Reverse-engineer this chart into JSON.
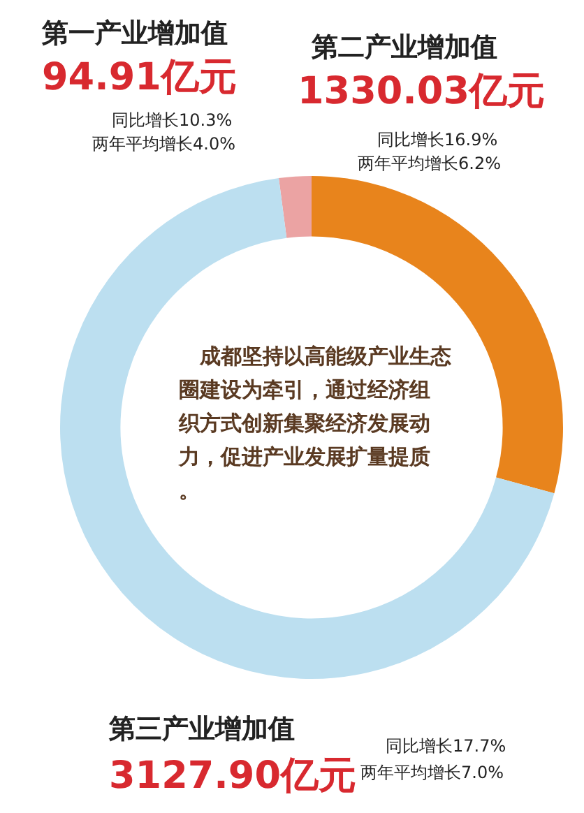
{
  "chart_data": {
    "type": "donut",
    "categories": [
      "第一产业增加值",
      "第二产业增加值",
      "第三产业增加值"
    ],
    "values": [
      94.91,
      1330.03,
      3127.9
    ],
    "colors": [
      "#eba3a3",
      "#e8841c",
      "#bcdff0"
    ],
    "value_labels": [
      "94.91亿元",
      "1330.03亿元",
      "3127.90亿元"
    ],
    "legend": false,
    "annotations": [
      "同比增长10.3%",
      "两年平均增长4.0%",
      "同比增长16.9%",
      "两年平均增长6.2%",
      "同比增长17.7%",
      "两年平均增长7.0%",
      "成都坚持以高能级产业生态圈建设为牵引，通过经济组织方式创新集聚经济发展动力，促进产业发展扩量提质。"
    ]
  }
}
